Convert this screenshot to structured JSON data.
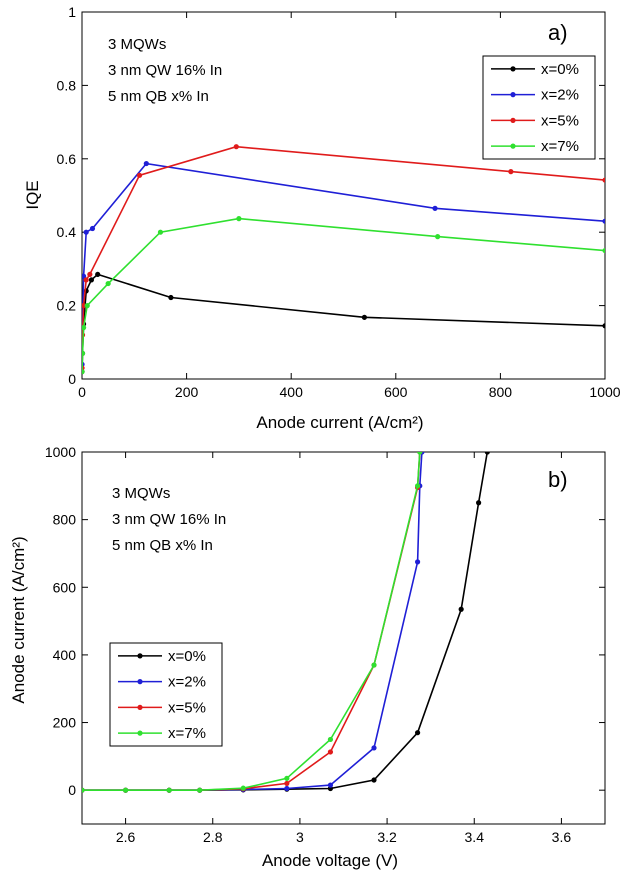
{
  "chart_data": [
    {
      "panel_label": "a)",
      "type": "line",
      "xlabel": "Anode current (A/cm²)",
      "ylabel": "IQE",
      "xlim": [
        0,
        1000
      ],
      "ylim": [
        0,
        1
      ],
      "xticks": [
        "0",
        "200",
        "400",
        "600",
        "800",
        "1000"
      ],
      "yticks": [
        "0",
        "0.2",
        "0.4",
        "0.6",
        "0.8",
        "1"
      ],
      "grid": false,
      "legend_position": "top-right",
      "annotation": [
        "3 MQWs",
        "3 nm QW 16% In",
        "5 nm QB  x% In"
      ],
      "series": [
        {
          "name": "x=0%",
          "color": "#000000",
          "x": [
            0.1,
            1,
            3,
            8,
            18,
            30,
            170,
            540,
            1000
          ],
          "y": [
            0.02,
            0.07,
            0.15,
            0.24,
            0.27,
            0.285,
            0.222,
            0.168,
            0.145
          ]
        },
        {
          "name": "x=2%",
          "color": "#1f1fd6",
          "x": [
            0.1,
            1,
            3,
            8,
            20,
            123,
            675,
            1000
          ],
          "y": [
            0.04,
            0.15,
            0.28,
            0.4,
            0.41,
            0.587,
            0.465,
            0.43
          ]
        },
        {
          "name": "x=5%",
          "color": "#e01b1b",
          "x": [
            0.1,
            1,
            3,
            8,
            15,
            110,
            295,
            820,
            1000
          ],
          "y": [
            0.03,
            0.12,
            0.2,
            0.27,
            0.285,
            0.555,
            0.633,
            0.565,
            0.542
          ]
        },
        {
          "name": "x=7%",
          "color": "#2fe02f",
          "x": [
            0.1,
            1,
            3,
            10,
            50,
            150,
            300,
            680,
            1000
          ],
          "y": [
            0.02,
            0.07,
            0.14,
            0.2,
            0.26,
            0.4,
            0.437,
            0.388,
            0.35
          ]
        }
      ]
    },
    {
      "panel_label": "b)",
      "type": "line",
      "xlabel": "Anode voltage (V)",
      "ylabel": "Anode current (A/cm²)",
      "xlim": [
        2.5,
        3.7
      ],
      "ylim": [
        -100,
        1000
      ],
      "xticks": [
        "2.6",
        "2.8",
        "3",
        "3.2",
        "3.4",
        "3.6"
      ],
      "yticks": [
        "0",
        "200",
        "400",
        "600",
        "800",
        "1000"
      ],
      "grid": false,
      "legend_position": "bottom-left",
      "annotation": [
        "3 MQWs",
        "3 nm QW 16% In",
        "5 nm QB  x% In"
      ],
      "series": [
        {
          "name": "x=0%",
          "color": "#000000",
          "x": [
            2.5,
            2.6,
            2.7,
            2.77,
            2.87,
            2.97,
            3.07,
            3.17,
            3.27,
            3.37,
            3.41,
            3.43
          ],
          "y": [
            0,
            0,
            0,
            0,
            1,
            3,
            5,
            30,
            170,
            535,
            850,
            1000
          ]
        },
        {
          "name": "x=2%",
          "color": "#1f1fd6",
          "x": [
            2.5,
            2.6,
            2.7,
            2.77,
            2.87,
            2.97,
            3.07,
            3.17,
            3.27,
            3.275,
            3.28
          ],
          "y": [
            0,
            0,
            0,
            0,
            2,
            5,
            15,
            125,
            675,
            900,
            1000
          ]
        },
        {
          "name": "x=5%",
          "color": "#e01b1b",
          "x": [
            2.5,
            2.6,
            2.7,
            2.77,
            2.87,
            2.97,
            3.07,
            3.17,
            3.27,
            3.275
          ],
          "y": [
            0,
            0,
            0,
            0,
            4,
            20,
            113,
            370,
            895,
            1000
          ]
        },
        {
          "name": "x=7%",
          "color": "#2fe02f",
          "x": [
            2.5,
            2.6,
            2.7,
            2.77,
            2.87,
            2.97,
            3.07,
            3.17,
            3.27,
            3.275
          ],
          "y": [
            0,
            0,
            0,
            0,
            6,
            35,
            150,
            370,
            900,
            1000
          ]
        }
      ]
    }
  ]
}
